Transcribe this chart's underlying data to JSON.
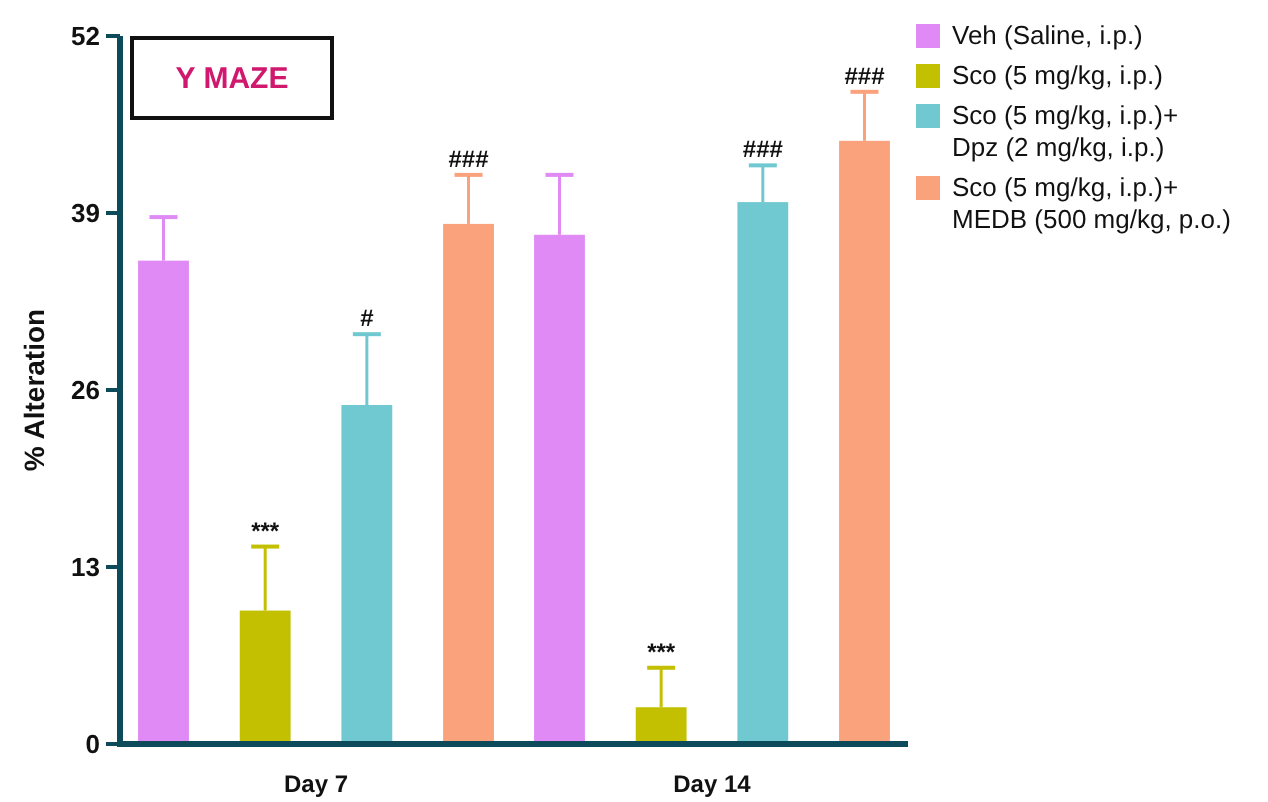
{
  "chart_data": {
    "type": "bar",
    "title": "Y MAZE",
    "ylabel": "% Alteration",
    "categories": [
      "Day 7",
      "Day 14"
    ],
    "ylim": [
      0,
      52
    ],
    "yticks": [
      0,
      13,
      26,
      39,
      52
    ],
    "grid": false,
    "legend": "top right",
    "series": [
      {
        "name": "Veh (Saline, i.p.)",
        "color": "#df8af5",
        "values": [
          35.5,
          37.4
        ],
        "errors": [
          [
            35.5,
            38.7
          ],
          [
            37.4,
            41.8
          ]
        ]
      },
      {
        "name": "Sco (5 mg/kg, i.p.)",
        "color": "#c2c000",
        "values": [
          9.8,
          2.7
        ],
        "errors": [
          [
            9.8,
            14.5
          ],
          [
            2.7,
            5.6
          ]
        ],
        "value_labels": [
          "***",
          "***"
        ]
      },
      {
        "name": "Sco (5 mg/kg, i.p.)+ Dpz (2 mg/kg, i.p.)",
        "color": "#70c8d0",
        "values": [
          24.9,
          39.8
        ],
        "errors": [
          [
            24.9,
            30.1
          ],
          [
            39.8,
            42.5
          ]
        ],
        "value_labels": [
          "#",
          "###"
        ]
      },
      {
        "name": "Sco (5 mg/kg, i.p.)+ MEDB (500 mg/kg, p.o.)",
        "color": "#f9a27c",
        "values": [
          38.2,
          44.3
        ],
        "errors": [
          [
            38.2,
            41.8
          ],
          [
            44.3,
            47.9
          ]
        ],
        "value_labels": [
          "###",
          "###"
        ]
      }
    ]
  }
}
